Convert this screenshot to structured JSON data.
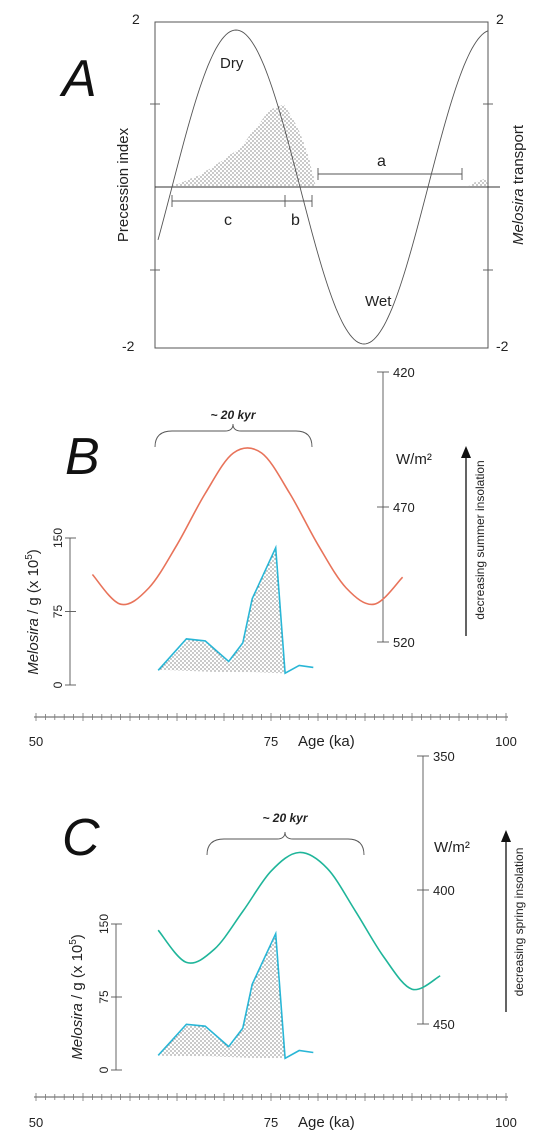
{
  "chart_data": [
    {
      "panel": "A",
      "type": "line",
      "left_axis": {
        "label": "Precession index",
        "ylim": [
          -2,
          2
        ],
        "top_label": "2",
        "bottom_label": "-2"
      },
      "right_axis": {
        "label_italic": "Melosira",
        "label_rest": " transport",
        "top_label": "2",
        "bottom_label": "-2"
      },
      "annotations": {
        "dry": "Dry",
        "wet": "Wet",
        "a": "a",
        "b": "b",
        "c": "c"
      }
    },
    {
      "panel": "B",
      "type": "line",
      "period_label": "~ 20 kyr",
      "insolation": {
        "unit": "W/m²",
        "ticks": [
          "420",
          "470",
          "520"
        ],
        "tick_values": [
          420,
          470,
          520
        ],
        "ylim": [
          420,
          520
        ],
        "arrow_label": "decreasing  summer insolation",
        "color": "#e8735a",
        "x": [
          56,
          59,
          62,
          65,
          68,
          71,
          74,
          77,
          80,
          83,
          86,
          89
        ],
        "y": [
          495,
          506,
          500,
          484,
          465,
          450,
          450,
          465,
          484,
          500,
          506,
          496
        ]
      },
      "melosira": {
        "label_italic": "Melosira",
        "label_rest": " / g (x 10",
        "label_sup": "5",
        "label_end": ")",
        "ticks": [
          "0",
          "75",
          "150"
        ],
        "tick_values": [
          0,
          75,
          150
        ],
        "ylim": [
          0,
          150
        ],
        "color": "#29b6d6",
        "x": [
          63,
          66,
          68,
          70.5,
          72,
          73,
          75.5,
          76.5,
          78,
          79.5
        ],
        "y": [
          15,
          47,
          45,
          24,
          43,
          88,
          140,
          12,
          20,
          18
        ]
      }
    },
    {
      "panel": "C",
      "type": "line",
      "period_label": "~ 20 kyr",
      "insolation": {
        "unit": "W/m²",
        "ticks": [
          "350",
          "400",
          "450"
        ],
        "tick_values": [
          350,
          400,
          450
        ],
        "ylim": [
          350,
          450
        ],
        "arrow_label": "decreasing  spring insolation",
        "color": "#1fb59a",
        "x": [
          63,
          66,
          69,
          72,
          75,
          78,
          81,
          84,
          87,
          90,
          93
        ],
        "y": [
          415,
          427,
          422,
          408,
          393,
          386,
          392,
          408,
          425,
          437,
          432
        ]
      },
      "melosira": {
        "label_italic": "Melosira",
        "label_rest": " / g (x 10",
        "label_sup": "5",
        "label_end": ")",
        "ticks": [
          "0",
          "75",
          "150"
        ],
        "tick_values": [
          0,
          75,
          150
        ],
        "ylim": [
          0,
          150
        ],
        "color": "#29b6d6",
        "x": [
          63,
          66,
          68,
          70.5,
          72,
          73,
          75.5,
          76.5,
          78,
          79.5
        ],
        "y": [
          15,
          47,
          45,
          24,
          43,
          88,
          140,
          12,
          20,
          18
        ]
      }
    }
  ],
  "age_axis": {
    "label": "Age (ka)",
    "ticks": [
      "50",
      "75",
      "100"
    ],
    "tick_values": [
      50,
      75,
      100
    ],
    "xlim": [
      50,
      100
    ]
  }
}
